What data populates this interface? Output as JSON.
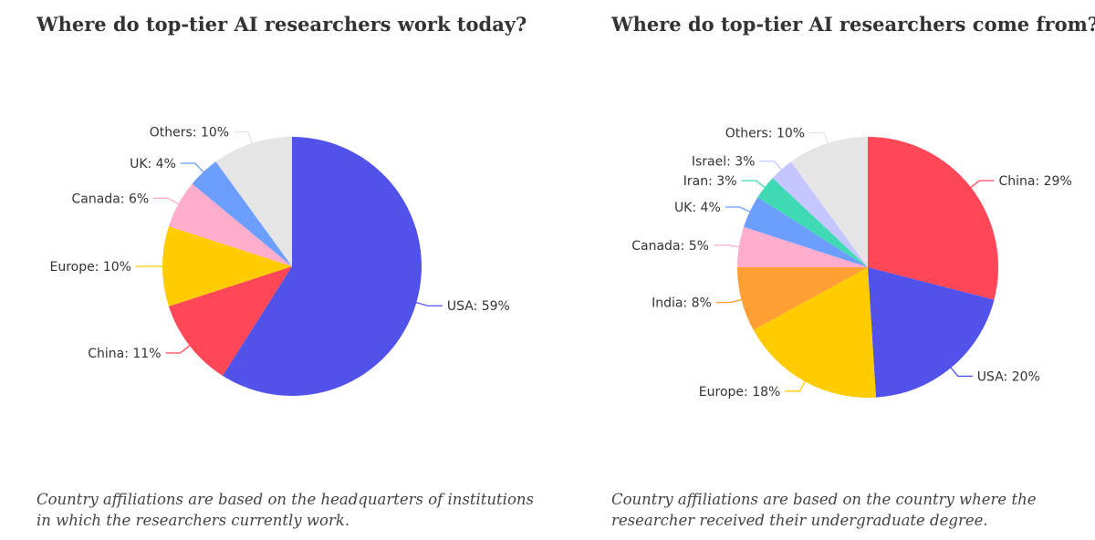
{
  "chart_data": [
    {
      "type": "pie",
      "title": "Where do top-tier AI researchers work today?",
      "note": "Country affiliations are based on the headquarters of institutions in which the researchers currently work.",
      "slices": [
        {
          "label": "USA",
          "value": 59,
          "display": "USA: 59%",
          "color": "#5152EA"
        },
        {
          "label": "China",
          "value": 11,
          "display": "China: 11%",
          "color": "#FF4757"
        },
        {
          "label": "Europe",
          "value": 10,
          "display": "Europe: 10%",
          "color": "#FFCC00"
        },
        {
          "label": "Canada",
          "value": 6,
          "display": "Canada: 6%",
          "color": "#FFADCC"
        },
        {
          "label": "UK",
          "value": 4,
          "display": "UK: 4%",
          "color": "#6B9EFF"
        },
        {
          "label": "Others",
          "value": 10,
          "display": "Others: 10%",
          "color": "#E5E5E5"
        }
      ]
    },
    {
      "type": "pie",
      "title": "Where do top-tier AI researchers come from?",
      "note": "Country affiliations are based on the country where the researcher received their undergraduate degree.",
      "slices": [
        {
          "label": "China",
          "value": 29,
          "display": "China: 29%",
          "color": "#FF4757"
        },
        {
          "label": "USA",
          "value": 20,
          "display": "USA: 20%",
          "color": "#5152EA"
        },
        {
          "label": "Europe",
          "value": 18,
          "display": "Europe: 18%",
          "color": "#FFCC00"
        },
        {
          "label": "India",
          "value": 8,
          "display": "India: 8%",
          "color": "#FF9F33"
        },
        {
          "label": "Canada",
          "value": 5,
          "display": "Canada: 5%",
          "color": "#FFADCC"
        },
        {
          "label": "UK",
          "value": 4,
          "display": "UK: 4%",
          "color": "#6B9EFF"
        },
        {
          "label": "Iran",
          "value": 3,
          "display": "Iran: 3%",
          "color": "#3FD9B4"
        },
        {
          "label": "Israel",
          "value": 3,
          "display": "Israel: 3%",
          "color": "#C5C6FF"
        },
        {
          "label": "Others",
          "value": 10,
          "display": "Others: 10%",
          "color": "#E5E5E5"
        }
      ]
    }
  ]
}
